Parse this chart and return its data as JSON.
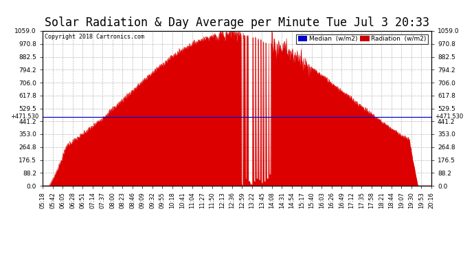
{
  "title": "Solar Radiation & Day Average per Minute Tue Jul 3 20:33",
  "copyright": "Copyright 2018 Cartronics.com",
  "median_value": 471.53,
  "ymax": 1059.0,
  "yticks": [
    0.0,
    88.2,
    176.5,
    264.8,
    353.0,
    441.2,
    529.5,
    617.8,
    706.0,
    794.2,
    882.5,
    970.8,
    1059.0
  ],
  "yticklabels": [
    "0.0",
    "88.2",
    "176.5",
    "264.8",
    "353.0",
    "441.2",
    "529.5",
    "617.8",
    "706.0",
    "794.2",
    "882.5",
    "970.8",
    "1059.0"
  ],
  "background_color": "#ffffff",
  "fill_color": "#dd0000",
  "median_color": "#0000cc",
  "grid_color": "#999999",
  "title_fontsize": 12,
  "legend_median_color": "#0000cc",
  "legend_radiation_color": "#cc0000",
  "xtick_labels": [
    "05:18",
    "05:42",
    "06:05",
    "06:28",
    "06:51",
    "07:14",
    "07:37",
    "08:00",
    "08:23",
    "08:46",
    "09:09",
    "09:32",
    "09:55",
    "10:18",
    "10:41",
    "11:04",
    "11:27",
    "11:50",
    "12:13",
    "12:36",
    "12:59",
    "13:22",
    "13:45",
    "14:08",
    "14:31",
    "14:54",
    "15:17",
    "15:40",
    "16:03",
    "16:26",
    "16:49",
    "17:12",
    "17:35",
    "17:58",
    "18:21",
    "18:44",
    "19:07",
    "19:30",
    "19:53",
    "20:16"
  ]
}
